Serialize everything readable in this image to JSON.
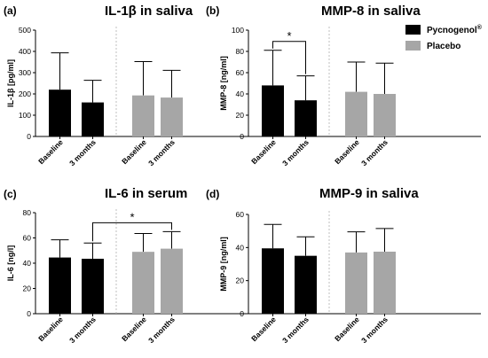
{
  "legend": [
    {
      "label": "Pycnogenol",
      "sup": "®",
      "color": "#000000"
    },
    {
      "label": "Placebo",
      "sup": "",
      "color": "#a6a6a6"
    }
  ],
  "chart_data": [
    {
      "type": "bar",
      "panel": "(a)",
      "title": "IL-1β  in saliva",
      "ylabel": "IL-1β [pg/ml]",
      "ylim": [
        0,
        500
      ],
      "yticks": [
        0,
        100,
        200,
        300,
        400,
        500
      ],
      "categories": [
        "Baseline",
        "3 months",
        "Baseline",
        "3 months"
      ],
      "values": [
        220,
        160,
        193,
        183
      ],
      "error_upper": [
        393,
        264,
        352,
        311
      ],
      "groups": [
        "Pycnogenol",
        "Pycnogenol",
        "Placebo",
        "Placebo"
      ],
      "significance": []
    },
    {
      "type": "bar",
      "panel": "(b)",
      "title": "MMP-8 in saliva",
      "ylabel": "MMP-8 [ng/ml]",
      "ylim": [
        0,
        100
      ],
      "yticks": [
        0,
        20,
        40,
        60,
        80,
        100
      ],
      "categories": [
        "Baseline",
        "3 months",
        "Baseline",
        "3 months"
      ],
      "values": [
        48,
        34,
        42,
        40
      ],
      "error_upper": [
        81,
        57,
        70,
        69
      ],
      "groups": [
        "Pycnogenol",
        "Pycnogenol",
        "Placebo",
        "Placebo"
      ],
      "significance": [
        {
          "from": 0,
          "to": 1,
          "label": "*"
        }
      ]
    },
    {
      "type": "bar",
      "panel": "(c)",
      "title": "IL-6 in serum",
      "ylabel": "IL-6 [ng/l]",
      "ylim": [
        0,
        80
      ],
      "yticks": [
        0,
        20,
        40,
        60,
        80
      ],
      "categories": [
        "Baseline",
        "3 months",
        "Baseline",
        "3 months"
      ],
      "values": [
        44.5,
        43.5,
        49,
        51.5
      ],
      "error_upper": [
        58.5,
        56,
        63.5,
        65
      ],
      "groups": [
        "Pycnogenol",
        "Pycnogenol",
        "Placebo",
        "Placebo"
      ],
      "significance": [
        {
          "from": 1,
          "to": 3,
          "label": "*"
        }
      ]
    },
    {
      "type": "bar",
      "panel": "(d)",
      "title": "MMP-9 in saliva",
      "ylabel": "MMP-9 [ng/ml]",
      "ylim": [
        0,
        60
      ],
      "yticks": [
        0,
        20,
        40,
        60
      ],
      "categories": [
        "Baseline",
        "3 months",
        "Baseline",
        "3 months"
      ],
      "values": [
        39.5,
        35,
        37,
        37.5
      ],
      "error_upper": [
        54,
        46.5,
        49.5,
        51.5
      ],
      "groups": [
        "Pycnogenol",
        "Pycnogenol",
        "Placebo",
        "Placebo"
      ],
      "significance": []
    }
  ]
}
